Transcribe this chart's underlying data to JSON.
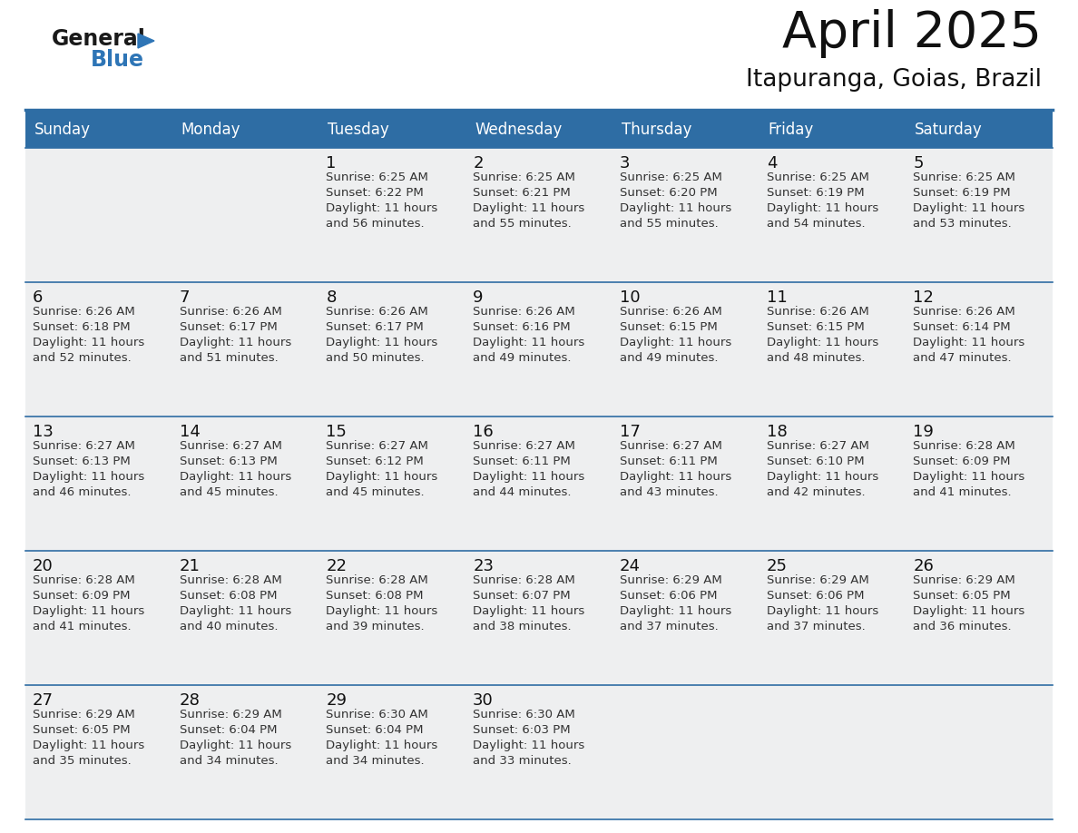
{
  "title": "April 2025",
  "subtitle": "Itapuranga, Goias, Brazil",
  "header_bg_color": "#2E6DA4",
  "header_text_color": "#FFFFFF",
  "row_bg_color": "#EEEFF0",
  "day_number_color": "#111111",
  "cell_text_color": "#333333",
  "line_color": "#2E6DA4",
  "logo_black": "#1a1a1a",
  "logo_blue": "#2E75B6",
  "days_of_week": [
    "Sunday",
    "Monday",
    "Tuesday",
    "Wednesday",
    "Thursday",
    "Friday",
    "Saturday"
  ],
  "weeks": [
    [
      {
        "date": "",
        "sunrise": "",
        "sunset": "",
        "daylight": ""
      },
      {
        "date": "",
        "sunrise": "",
        "sunset": "",
        "daylight": ""
      },
      {
        "date": "1",
        "sunrise": "6:25 AM",
        "sunset": "6:22 PM",
        "daylight": "11 hours and 56 minutes."
      },
      {
        "date": "2",
        "sunrise": "6:25 AM",
        "sunset": "6:21 PM",
        "daylight": "11 hours and 55 minutes."
      },
      {
        "date": "3",
        "sunrise": "6:25 AM",
        "sunset": "6:20 PM",
        "daylight": "11 hours and 55 minutes."
      },
      {
        "date": "4",
        "sunrise": "6:25 AM",
        "sunset": "6:19 PM",
        "daylight": "11 hours and 54 minutes."
      },
      {
        "date": "5",
        "sunrise": "6:25 AM",
        "sunset": "6:19 PM",
        "daylight": "11 hours and 53 minutes."
      }
    ],
    [
      {
        "date": "6",
        "sunrise": "6:26 AM",
        "sunset": "6:18 PM",
        "daylight": "11 hours and 52 minutes."
      },
      {
        "date": "7",
        "sunrise": "6:26 AM",
        "sunset": "6:17 PM",
        "daylight": "11 hours and 51 minutes."
      },
      {
        "date": "8",
        "sunrise": "6:26 AM",
        "sunset": "6:17 PM",
        "daylight": "11 hours and 50 minutes."
      },
      {
        "date": "9",
        "sunrise": "6:26 AM",
        "sunset": "6:16 PM",
        "daylight": "11 hours and 49 minutes."
      },
      {
        "date": "10",
        "sunrise": "6:26 AM",
        "sunset": "6:15 PM",
        "daylight": "11 hours and 49 minutes."
      },
      {
        "date": "11",
        "sunrise": "6:26 AM",
        "sunset": "6:15 PM",
        "daylight": "11 hours and 48 minutes."
      },
      {
        "date": "12",
        "sunrise": "6:26 AM",
        "sunset": "6:14 PM",
        "daylight": "11 hours and 47 minutes."
      }
    ],
    [
      {
        "date": "13",
        "sunrise": "6:27 AM",
        "sunset": "6:13 PM",
        "daylight": "11 hours and 46 minutes."
      },
      {
        "date": "14",
        "sunrise": "6:27 AM",
        "sunset": "6:13 PM",
        "daylight": "11 hours and 45 minutes."
      },
      {
        "date": "15",
        "sunrise": "6:27 AM",
        "sunset": "6:12 PM",
        "daylight": "11 hours and 45 minutes."
      },
      {
        "date": "16",
        "sunrise": "6:27 AM",
        "sunset": "6:11 PM",
        "daylight": "11 hours and 44 minutes."
      },
      {
        "date": "17",
        "sunrise": "6:27 AM",
        "sunset": "6:11 PM",
        "daylight": "11 hours and 43 minutes."
      },
      {
        "date": "18",
        "sunrise": "6:27 AM",
        "sunset": "6:10 PM",
        "daylight": "11 hours and 42 minutes."
      },
      {
        "date": "19",
        "sunrise": "6:28 AM",
        "sunset": "6:09 PM",
        "daylight": "11 hours and 41 minutes."
      }
    ],
    [
      {
        "date": "20",
        "sunrise": "6:28 AM",
        "sunset": "6:09 PM",
        "daylight": "11 hours and 41 minutes."
      },
      {
        "date": "21",
        "sunrise": "6:28 AM",
        "sunset": "6:08 PM",
        "daylight": "11 hours and 40 minutes."
      },
      {
        "date": "22",
        "sunrise": "6:28 AM",
        "sunset": "6:08 PM",
        "daylight": "11 hours and 39 minutes."
      },
      {
        "date": "23",
        "sunrise": "6:28 AM",
        "sunset": "6:07 PM",
        "daylight": "11 hours and 38 minutes."
      },
      {
        "date": "24",
        "sunrise": "6:29 AM",
        "sunset": "6:06 PM",
        "daylight": "11 hours and 37 minutes."
      },
      {
        "date": "25",
        "sunrise": "6:29 AM",
        "sunset": "6:06 PM",
        "daylight": "11 hours and 37 minutes."
      },
      {
        "date": "26",
        "sunrise": "6:29 AM",
        "sunset": "6:05 PM",
        "daylight": "11 hours and 36 minutes."
      }
    ],
    [
      {
        "date": "27",
        "sunrise": "6:29 AM",
        "sunset": "6:05 PM",
        "daylight": "11 hours and 35 minutes."
      },
      {
        "date": "28",
        "sunrise": "6:29 AM",
        "sunset": "6:04 PM",
        "daylight": "11 hours and 34 minutes."
      },
      {
        "date": "29",
        "sunrise": "6:30 AM",
        "sunset": "6:04 PM",
        "daylight": "11 hours and 34 minutes."
      },
      {
        "date": "30",
        "sunrise": "6:30 AM",
        "sunset": "6:03 PM",
        "daylight": "11 hours and 33 minutes."
      },
      {
        "date": "",
        "sunrise": "",
        "sunset": "",
        "daylight": ""
      },
      {
        "date": "",
        "sunrise": "",
        "sunset": "",
        "daylight": ""
      },
      {
        "date": "",
        "sunrise": "",
        "sunset": "",
        "daylight": ""
      }
    ]
  ]
}
